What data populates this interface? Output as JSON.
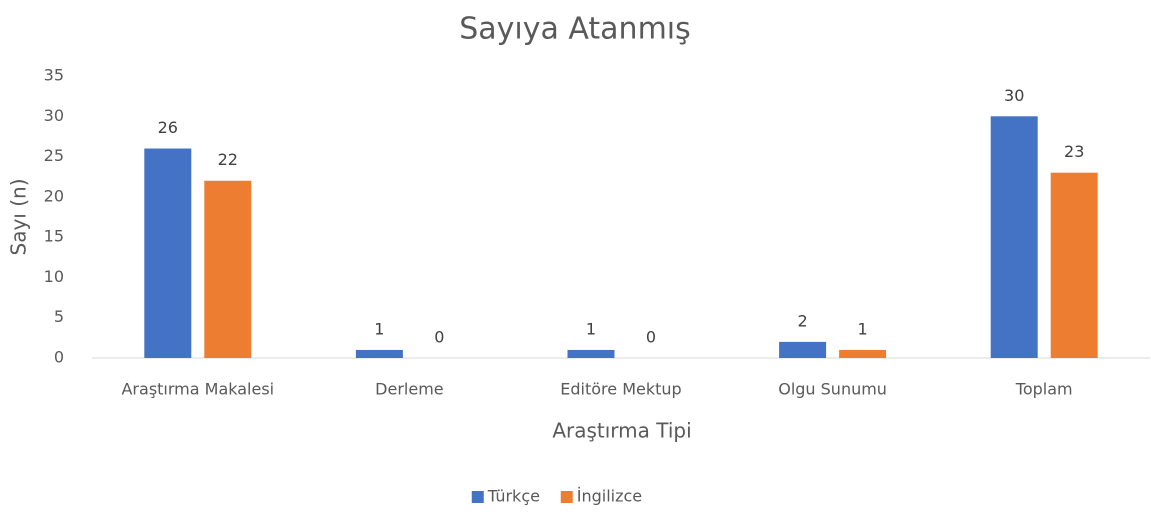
{
  "chart_data": {
    "type": "bar",
    "title": "Sayıya Atanmış",
    "x_label": "Araştırma Tipi",
    "y_label": "Sayı (n)",
    "categories": [
      "Araştırma Makalesi",
      "Derleme",
      "Editöre Mektup",
      "Olgu Sunumu",
      "Toplam"
    ],
    "series": [
      {
        "name": "Türkçe",
        "color": "#4472c4",
        "values": [
          26,
          1,
          1,
          2,
          30
        ]
      },
      {
        "name": "İngilizce",
        "color": "#ed7d31",
        "values": [
          22,
          0,
          0,
          1,
          23
        ]
      }
    ],
    "ylim": [
      0,
      35
    ],
    "yticks": [
      0,
      5,
      10,
      15,
      20,
      25,
      30,
      35
    ],
    "grid": false,
    "legend": "bottom"
  }
}
